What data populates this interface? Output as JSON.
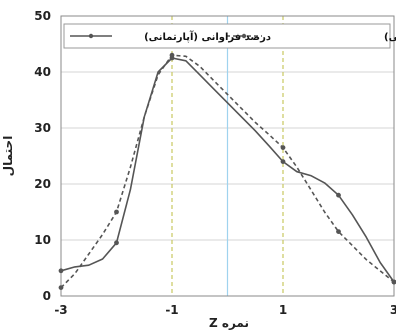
{
  "chart_data": {
    "type": "line",
    "xlabel": "نمره Z",
    "ylabel": "احتمال",
    "xlim": [
      -3,
      3
    ],
    "ylim": [
      0,
      50
    ],
    "x_ticks": [
      -3,
      -1,
      1,
      3
    ],
    "y_ticks": [
      0,
      10,
      20,
      30,
      40,
      50
    ],
    "vertical_reference_lines": [
      {
        "x": -1,
        "style": "dashed",
        "color": "#c8c860"
      },
      {
        "x": 1,
        "style": "dashed",
        "color": "#c8c860"
      },
      {
        "x": 0,
        "style": "solid",
        "color": "#9fd3ee"
      }
    ],
    "series": [
      {
        "name": "درصد فراوانی (ویلایی)",
        "style": "solid",
        "color": "#555555",
        "points": [
          [
            -3,
            4.5
          ],
          [
            -2,
            9.5
          ],
          [
            -1,
            42.5
          ],
          [
            1,
            24
          ],
          [
            2,
            18
          ],
          [
            3,
            2.5
          ]
        ],
        "curve": [
          [
            -3,
            4.5
          ],
          [
            -2.75,
            5.2
          ],
          [
            -2.5,
            5.5
          ],
          [
            -2.25,
            6.6
          ],
          [
            -2,
            9.5
          ],
          [
            -1.75,
            19
          ],
          [
            -1.5,
            32
          ],
          [
            -1.25,
            40
          ],
          [
            -1,
            42.5
          ],
          [
            -0.75,
            42
          ],
          [
            -0.5,
            39.5
          ],
          [
            -0.25,
            37
          ],
          [
            0,
            34.5
          ],
          [
            0.25,
            32
          ],
          [
            0.5,
            29.5
          ],
          [
            0.75,
            26.8
          ],
          [
            1,
            24
          ],
          [
            1.25,
            22.2
          ],
          [
            1.5,
            21.5
          ],
          [
            1.75,
            20.2
          ],
          [
            2,
            18
          ],
          [
            2.25,
            14.5
          ],
          [
            2.5,
            10.5
          ],
          [
            2.75,
            6
          ],
          [
            3,
            2.5
          ]
        ]
      },
      {
        "name": "درصد فراوانی (آپارتمانی)",
        "style": "dashed",
        "color": "#555555",
        "points": [
          [
            -3,
            1.5
          ],
          [
            -2,
            15
          ],
          [
            -1,
            43
          ],
          [
            1,
            26.5
          ],
          [
            2,
            11.5
          ],
          [
            3,
            2.5
          ]
        ],
        "curve": [
          [
            -3,
            1.5
          ],
          [
            -2.75,
            4
          ],
          [
            -2.5,
            7.5
          ],
          [
            -2.25,
            11
          ],
          [
            -2,
            15
          ],
          [
            -1.75,
            23
          ],
          [
            -1.5,
            32
          ],
          [
            -1.25,
            39.5
          ],
          [
            -1,
            43
          ],
          [
            -0.75,
            42.8
          ],
          [
            -0.5,
            41
          ],
          [
            -0.25,
            38.5
          ],
          [
            0,
            36
          ],
          [
            0.25,
            33.5
          ],
          [
            0.5,
            31
          ],
          [
            0.75,
            28.8
          ],
          [
            1,
            26.5
          ],
          [
            1.25,
            23
          ],
          [
            1.5,
            19
          ],
          [
            1.75,
            15
          ],
          [
            2,
            11.5
          ],
          [
            2.25,
            9
          ],
          [
            2.5,
            6.5
          ],
          [
            2.75,
            4.5
          ],
          [
            3,
            2.5
          ]
        ]
      }
    ],
    "legend": {
      "placement": "top",
      "items": [
        {
          "label": "درصد فراوانی (ویلایی)",
          "style": "solid"
        },
        {
          "label": "درصد فراوانی (آپارتمانی)",
          "style": "dashed"
        }
      ]
    }
  }
}
